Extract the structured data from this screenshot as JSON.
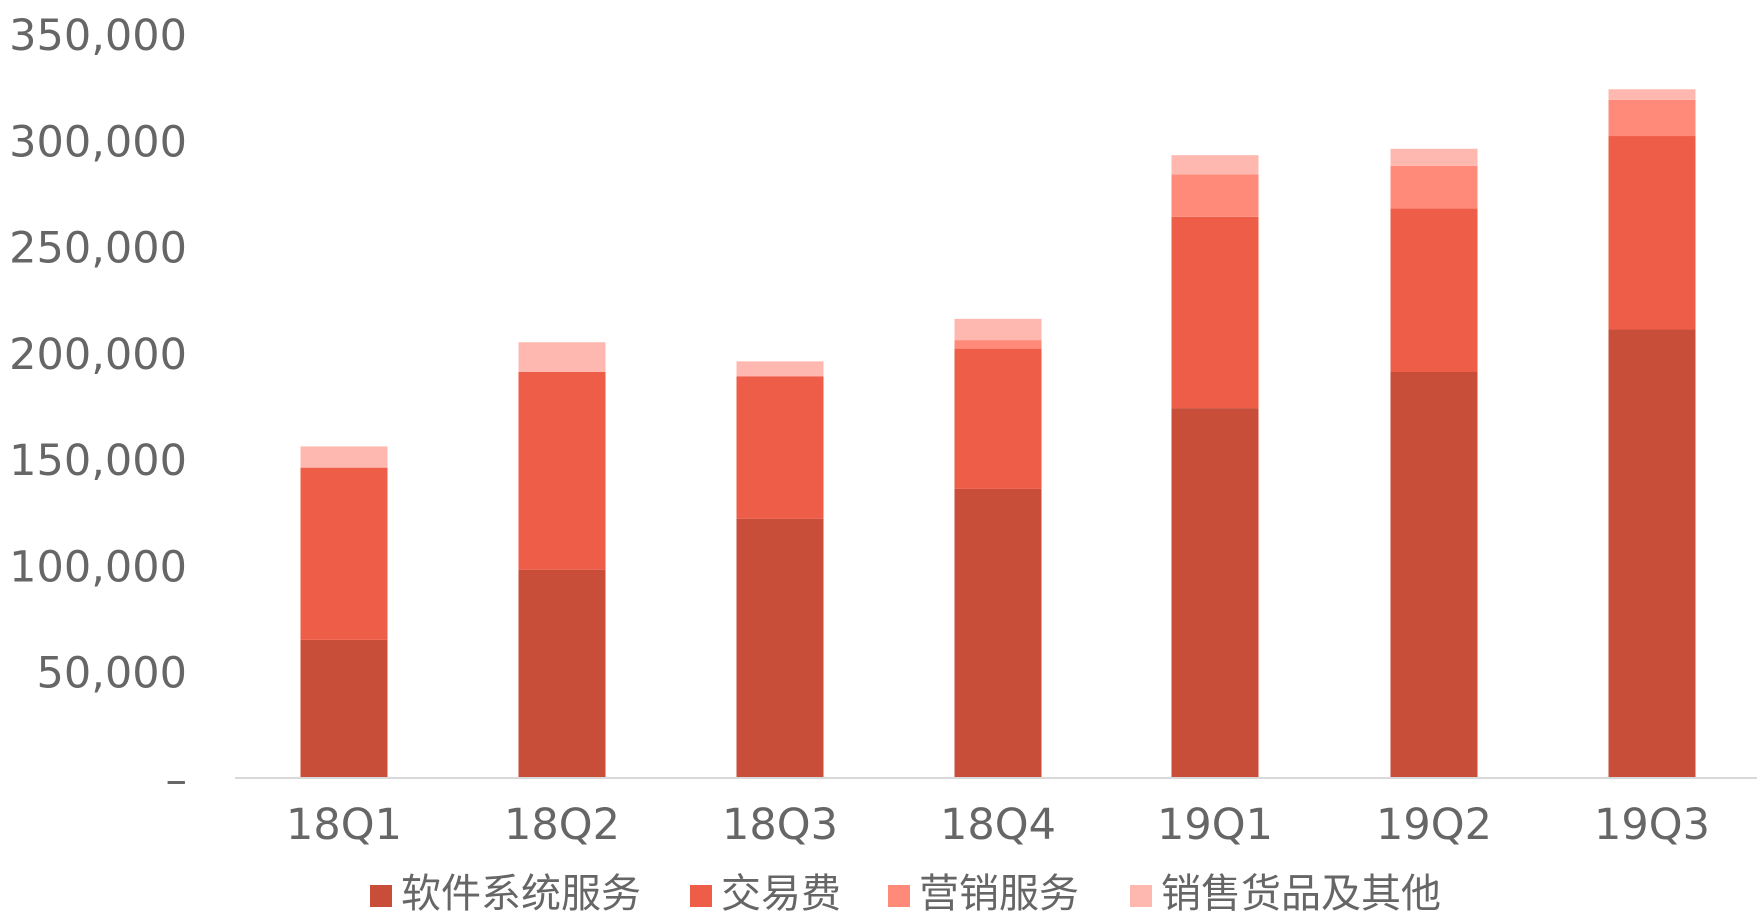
{
  "chart_data": {
    "type": "bar",
    "stacked": true,
    "categories": [
      "18Q1",
      "18Q2",
      "18Q3",
      "18Q4",
      "19Q1",
      "19Q2",
      "19Q3"
    ],
    "series": [
      {
        "name": "软件系统服务",
        "color": "#C84E3A",
        "values": [
          65000,
          98000,
          122000,
          136000,
          174000,
          191000,
          211000
        ]
      },
      {
        "name": "交易费",
        "color": "#EE5D47",
        "values": [
          81000,
          93000,
          67000,
          66000,
          90000,
          77000,
          91000
        ]
      },
      {
        "name": "营销服务",
        "color": "#FF8A7A",
        "values": [
          0,
          0,
          0,
          4000,
          20000,
          20000,
          17000
        ]
      },
      {
        "name": "销售货品及其他",
        "color": "#FFB8B0",
        "values": [
          10000,
          14000,
          7000,
          10000,
          9000,
          8000,
          5000
        ]
      }
    ],
    "ylim": [
      0,
      350000
    ],
    "yticks": [
      0,
      50000,
      100000,
      150000,
      200000,
      250000,
      300000,
      350000
    ],
    "ytick_labels": [
      "–",
      "50,000",
      "100,000",
      "150,000",
      "200,000",
      "250,000",
      "300,000",
      "350,000"
    ],
    "legend_position": "bottom",
    "grid": false,
    "title": "",
    "xlabel": "",
    "ylabel": ""
  }
}
